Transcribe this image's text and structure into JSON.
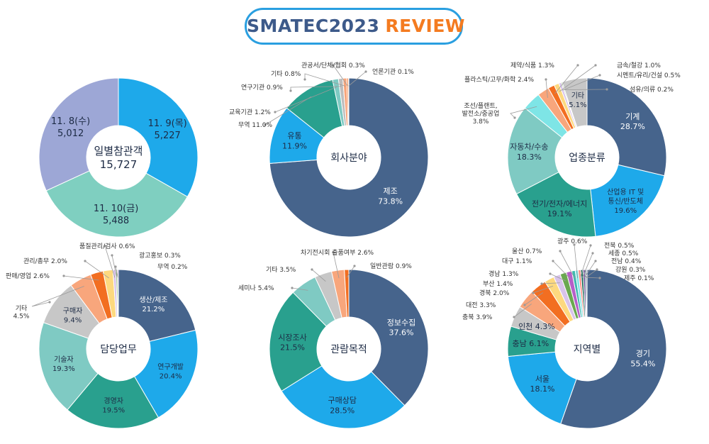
{
  "header": {
    "title_main": "SMATEC2023",
    "title_accent": "REVIEW"
  },
  "chart_data": [
    {
      "type": "pie",
      "center_label": [
        "일별참관객",
        "15,727"
      ],
      "slices": [
        {
          "name": "11. 9(목)",
          "value": 5227,
          "value_label": "5,227",
          "color": "#1ea9ea",
          "label_color": "#1d2b45"
        },
        {
          "name": "11. 10(금)",
          "value": 5488,
          "value_label": "5,488",
          "color": "#7fcfc0",
          "label_color": "#1d2b45"
        },
        {
          "name": "11. 8(수)",
          "value": 5012,
          "value_label": "5,012",
          "color": "#9da7d6",
          "label_color": "#1d2b45"
        }
      ]
    },
    {
      "type": "pie",
      "center_label": [
        "회사분야"
      ],
      "slices": [
        {
          "name": "제조",
          "value": 73.8,
          "value_label": "73.8%",
          "color": "#46648c",
          "label_color": "#ffffff"
        },
        {
          "name": "유통",
          "value": 11.9,
          "value_label": "11.9%",
          "color": "#1ea9ea",
          "label_color": "#1d2b45"
        },
        {
          "name": "무역",
          "value": 11.0,
          "value_label": "11.0%",
          "color": "#29a08e"
        },
        {
          "name": "교육기관",
          "value": 1.2,
          "value_label": "1.2%",
          "color": "#7fcac3"
        },
        {
          "name": "연구기관",
          "value": 0.9,
          "value_label": "0.9%",
          "color": "#bdbdbd"
        },
        {
          "name": "기타",
          "value": 0.8,
          "value_label": "0.8%",
          "color": "#f8a67c"
        },
        {
          "name": "관공서/단체/협회",
          "value": 0.3,
          "value_label": "0.3%",
          "color": "#f26e21"
        },
        {
          "name": "언론기관",
          "value": 0.1,
          "value_label": "0.1%",
          "color": "#fdd97f"
        }
      ]
    },
    {
      "type": "pie",
      "center_label": [
        "업종분류"
      ],
      "slices": [
        {
          "name": "기계",
          "value": 28.7,
          "value_label": "28.7%",
          "color": "#46648c",
          "label_color": "#ffffff"
        },
        {
          "name": "산업용 IT 및 통신/반도체",
          "value": 19.6,
          "value_label": "19.6%",
          "color": "#1ea9ea",
          "label_color": "#1d2b45"
        },
        {
          "name": "전기/전자/에너지",
          "value": 19.1,
          "value_label": "19.1%",
          "color": "#29a08e",
          "label_color": "#1d2b45"
        },
        {
          "name": "자동차/수송",
          "value": 18.3,
          "value_label": "18.3%",
          "color": "#7fcac3",
          "label_color": "#1d2b45"
        },
        {
          "name": "조선/플랜트, 발전소/중공업",
          "value": 3.8,
          "value_label": "3.8%",
          "color": "#7ee5e6"
        },
        {
          "name": "플라스틱/고무/화학",
          "value": 2.4,
          "value_label": "2.4%",
          "color": "#f8a67c"
        },
        {
          "name": "제약/식품",
          "value": 1.3,
          "value_label": "1.3%",
          "color": "#f26e21"
        },
        {
          "name": "금속/철강",
          "value": 1.0,
          "value_label": "1.0%",
          "color": "#fdd97f"
        },
        {
          "name": "시멘트/유리/건설",
          "value": 0.5,
          "value_label": "0.5%",
          "color": "#d8c3ea"
        },
        {
          "name": "섬유/의류",
          "value": 0.2,
          "value_label": "0.2%",
          "color": "#6aa84f"
        },
        {
          "name": "기타",
          "value": 5.1,
          "value_label": "5.1%",
          "color": "#c7c7c7",
          "label_color": "#1d2b45"
        }
      ]
    },
    {
      "type": "pie",
      "center_label": [
        "담당업무"
      ],
      "slices": [
        {
          "name": "생산/제조",
          "value": 21.2,
          "value_label": "21.2%",
          "color": "#46648c",
          "label_color": "#ffffff"
        },
        {
          "name": "연구개발",
          "value": 20.4,
          "value_label": "20.4%",
          "color": "#1ea9ea",
          "label_color": "#1d2b45"
        },
        {
          "name": "경영자",
          "value": 19.5,
          "value_label": "19.5%",
          "color": "#29a08e",
          "label_color": "#1d2b45"
        },
        {
          "name": "기술자",
          "value": 19.3,
          "value_label": "19.3%",
          "color": "#7fcac3",
          "label_color": "#1d2b45"
        },
        {
          "name": "구매자",
          "value": 9.4,
          "value_label": "9.4%",
          "color": "#c7c7c7",
          "label_color": "#1d2b45"
        },
        {
          "name": "기타",
          "value": 4.5,
          "value_label": "4.5%",
          "color": "#f8a67c"
        },
        {
          "name": "판매/영업",
          "value": 2.6,
          "value_label": "2.6%",
          "color": "#f26e21"
        },
        {
          "name": "관리/총무",
          "value": 2.0,
          "value_label": "2.0%",
          "color": "#fdd97f"
        },
        {
          "name": "품질관리/검사",
          "value": 0.6,
          "value_label": "0.6%",
          "color": "#d8c3ea"
        },
        {
          "name": "광고홍보",
          "value": 0.3,
          "value_label": "0.3%",
          "color": "#6aa84f"
        },
        {
          "name": "무역",
          "value": 0.2,
          "value_label": "0.2%",
          "color": "#9b59b6"
        }
      ]
    },
    {
      "type": "pie",
      "center_label": [
        "관람목적"
      ],
      "slices": [
        {
          "name": "정보수집",
          "value": 37.6,
          "value_label": "37.6%",
          "color": "#46648c",
          "label_color": "#ffffff"
        },
        {
          "name": "구매상담",
          "value": 28.5,
          "value_label": "28.5%",
          "color": "#1ea9ea",
          "label_color": "#1d2b45"
        },
        {
          "name": "시장조사",
          "value": 21.5,
          "value_label": "21.5%",
          "color": "#29a08e",
          "label_color": "#1d2b45"
        },
        {
          "name": "세미나",
          "value": 5.4,
          "value_label": "5.4%",
          "color": "#7fcac3"
        },
        {
          "name": "기타",
          "value": 3.5,
          "value_label": "3.5%",
          "color": "#c7c7c7"
        },
        {
          "name": "차기전시회 출품여부",
          "value": 2.6,
          "value_label": "2.6%",
          "color": "#f8a67c"
        },
        {
          "name": "일반관람",
          "value": 0.9,
          "value_label": "0.9%",
          "color": "#f26e21"
        }
      ]
    },
    {
      "type": "pie",
      "center_label": [
        "지역별"
      ],
      "slices": [
        {
          "name": "경기",
          "value": 55.4,
          "value_label": "55.4%",
          "color": "#46648c",
          "label_color": "#ffffff"
        },
        {
          "name": "서울",
          "value": 18.1,
          "value_label": "18.1%",
          "color": "#1ea9ea",
          "label_color": "#1d2b45"
        },
        {
          "name": "충남",
          "value": 6.1,
          "value_label": "6.1%",
          "color": "#29a08e",
          "label_color": "#1d2b45"
        },
        {
          "name": "인천",
          "value": 4.3,
          "value_label": "4.3%",
          "color": "#c7c7c7",
          "label_color": "#1d2b45"
        },
        {
          "name": "충북",
          "value": 3.9,
          "value_label": "3.9%",
          "color": "#f8a67c"
        },
        {
          "name": "대전",
          "value": 3.3,
          "value_label": "3.3%",
          "color": "#f26e21"
        },
        {
          "name": "경북",
          "value": 2.0,
          "value_label": "2.0%",
          "color": "#fdd97f"
        },
        {
          "name": "부산",
          "value": 1.4,
          "value_label": "1.4%",
          "color": "#d8c3ea"
        },
        {
          "name": "경남",
          "value": 1.3,
          "value_label": "1.3%",
          "color": "#6aa84f"
        },
        {
          "name": "대구",
          "value": 1.1,
          "value_label": "1.1%",
          "color": "#b65fc8"
        },
        {
          "name": "울산",
          "value": 0.7,
          "value_label": "0.7%",
          "color": "#3fb8af"
        },
        {
          "name": "광주",
          "value": 0.6,
          "value_label": "0.6%",
          "color": "#7ee5e6"
        },
        {
          "name": "전북",
          "value": 0.5,
          "value_label": "0.5%",
          "color": "#ff8a80"
        },
        {
          "name": "세종",
          "value": 0.5,
          "value_label": "0.5%",
          "color": "#1e6f5c"
        },
        {
          "name": "전남",
          "value": 0.4,
          "value_label": "0.4%",
          "color": "#5c3d8f"
        },
        {
          "name": "강원",
          "value": 0.3,
          "value_label": "0.3%",
          "color": "#2e4a6b"
        },
        {
          "name": "제주",
          "value": 0.1,
          "value_label": "0.1%",
          "color": "#8e44ad"
        }
      ]
    }
  ]
}
